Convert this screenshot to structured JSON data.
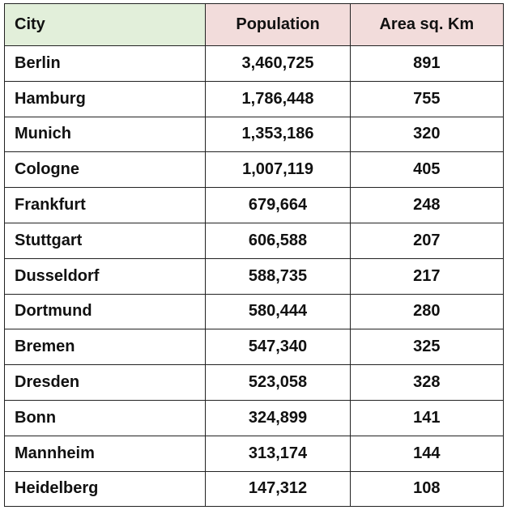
{
  "table": {
    "headers": [
      {
        "label": "City",
        "bg": "#E2EFDA"
      },
      {
        "label": "Population",
        "bg": "#F2DCDB"
      },
      {
        "label": "Area sq. Km",
        "bg": "#F2DCDB"
      }
    ],
    "rows": [
      {
        "city": "Berlin",
        "population": "3,460,725",
        "area": "891"
      },
      {
        "city": "Hamburg",
        "population": "1,786,448",
        "area": "755"
      },
      {
        "city": "Munich",
        "population": "1,353,186",
        "area": "320"
      },
      {
        "city": "Cologne",
        "population": "1,007,119",
        "area": "405"
      },
      {
        "city": "Frankfurt",
        "population": "679,664",
        "area": "248"
      },
      {
        "city": "Stuttgart",
        "population": "606,588",
        "area": "207"
      },
      {
        "city": "Dusseldorf",
        "population": "588,735",
        "area": "217"
      },
      {
        "city": "Dortmund",
        "population": "580,444",
        "area": "280"
      },
      {
        "city": "Bremen",
        "population": "547,340",
        "area": "325"
      },
      {
        "city": "Dresden",
        "population": "523,058",
        "area": "328"
      },
      {
        "city": "Bonn",
        "population": "324,899",
        "area": "141"
      },
      {
        "city": "Mannheim",
        "population": "313,174",
        "area": "144"
      },
      {
        "city": "Heidelberg",
        "population": "147,312",
        "area": "108"
      }
    ]
  }
}
